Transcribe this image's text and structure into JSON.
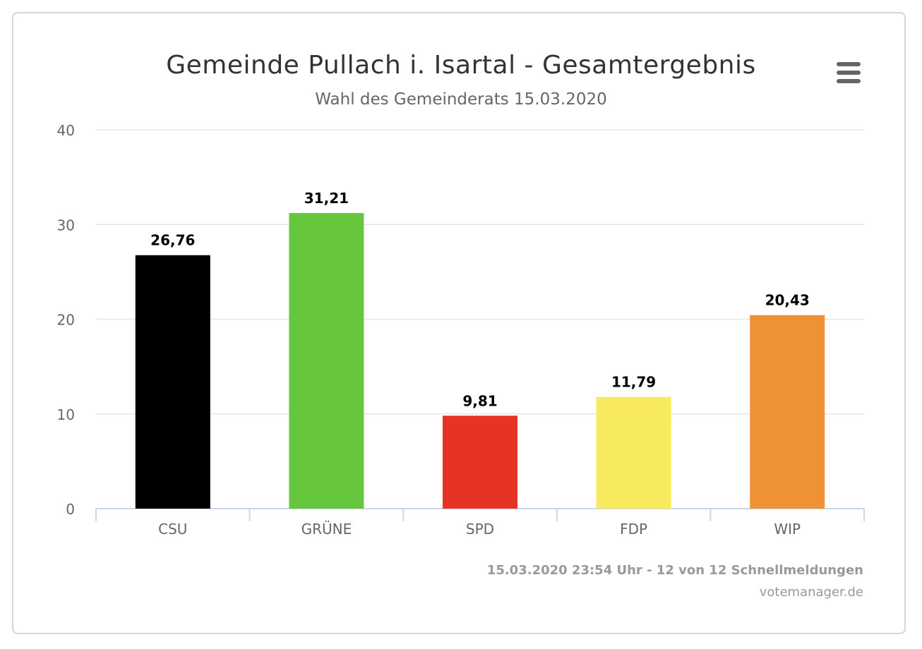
{
  "header": {
    "title": "Gemeinde Pullach i. Isartal - Gesamtergebnis",
    "subtitle": "Wahl des Gemeinderats 15.03.2020",
    "menu_icon": "hamburger-menu-icon"
  },
  "footer": {
    "status": "15.03.2020 23:54 Uhr - 12 von 12 Schnellmeldungen",
    "source": "votemanager.de"
  },
  "chart_data": {
    "type": "bar",
    "title": "Gemeinde Pullach i. Isartal - Gesamtergebnis",
    "subtitle": "Wahl des Gemeinderats 15.03.2020",
    "categories": [
      "CSU",
      "GRÜNE",
      "SPD",
      "FDP",
      "WIP"
    ],
    "values": [
      26.76,
      31.21,
      9.81,
      11.79,
      20.43
    ],
    "value_labels": [
      "26,76",
      "31,21",
      "9,81",
      "11,79",
      "20,43"
    ],
    "colors": [
      "#000000",
      "#67c73c",
      "#e73323",
      "#f7ea5f",
      "#ef9236"
    ],
    "ylim": [
      0,
      40
    ],
    "yticks": [
      0,
      10,
      20,
      30,
      40
    ],
    "grid": true,
    "legend": "none",
    "xlabel": "",
    "ylabel": ""
  }
}
